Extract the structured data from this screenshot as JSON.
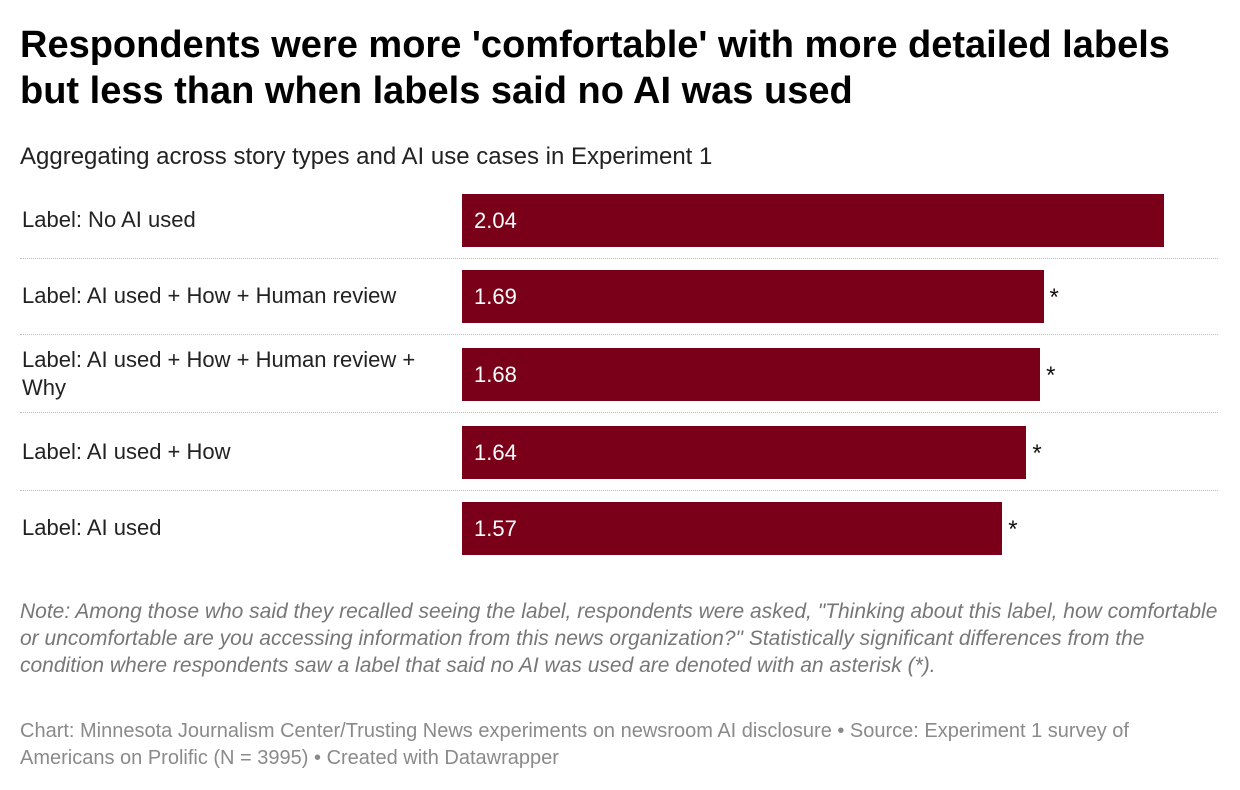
{
  "chart_data": {
    "type": "bar",
    "orientation": "horizontal",
    "title": "Respondents were more 'comfortable' with more detailed labels but less than when labels said no AI was used",
    "subtitle": "Aggregating across story types and AI use cases in Experiment 1",
    "categories": [
      "Label: No AI used",
      "Label: AI used + How + Human review",
      "Label: AI used + How + Human review + Why",
      "Label: AI used + How",
      "Label: AI used"
    ],
    "values": [
      2.04,
      1.69,
      1.68,
      1.64,
      1.57
    ],
    "value_labels": [
      "2.04",
      "1.69",
      "1.68",
      "1.64",
      "1.57"
    ],
    "significance": [
      "",
      "*",
      "*",
      "*",
      "*"
    ],
    "xlim": [
      0,
      2.04
    ],
    "bar_color": "#7a0019",
    "grid": false
  },
  "note": "Note: Among those who said they recalled seeing the label, respondents were asked, \"Thinking about this label, how comfortable or uncomfortable are you accessing information from this news organization?\" Statistically significant differences from the condition where respondents saw a label that said no AI was used are denoted with an asterisk (*).",
  "source": "Chart: Minnesota Journalism Center/Trusting News experiments on newsroom AI disclosure • Source: Experiment 1 survey of Americans on Prolific (N = 3995) • Created with Datawrapper"
}
